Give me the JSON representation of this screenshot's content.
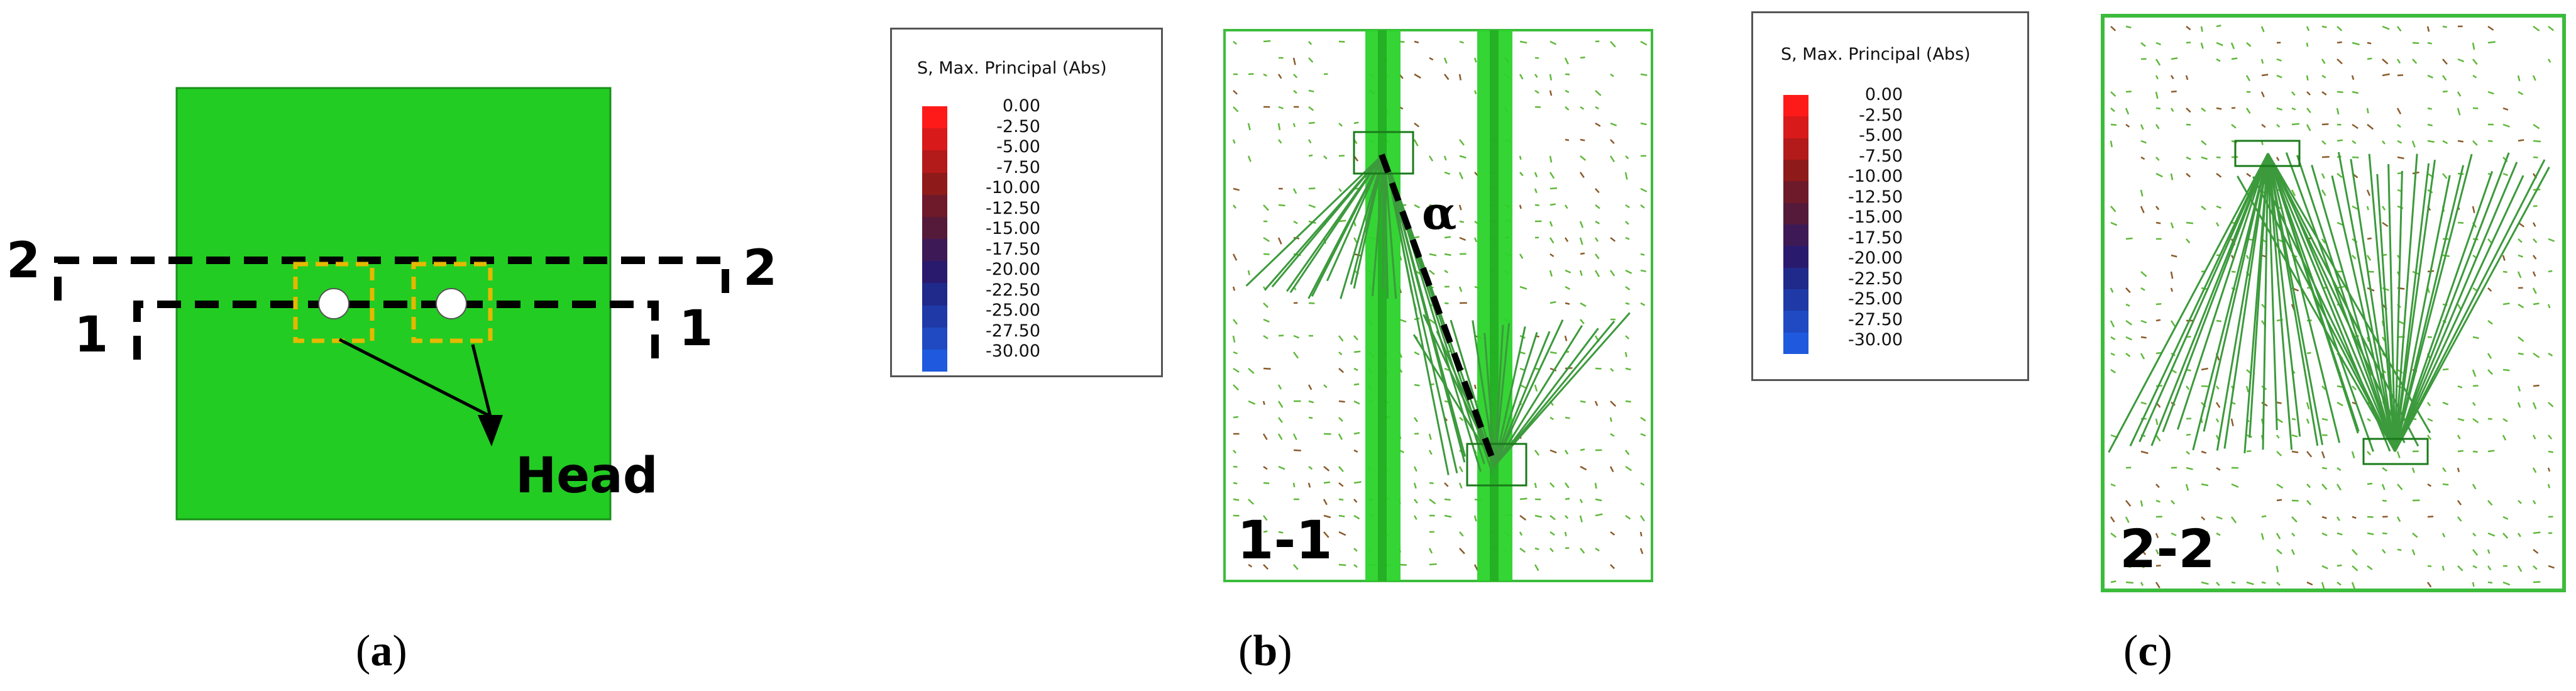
{
  "panels": {
    "a": {
      "caption": "a",
      "section_labels": {
        "two_left": "2",
        "two_right": "2",
        "one_left": "1",
        "one_right": "1"
      },
      "head_label": "Head",
      "colors": {
        "plate": "#22cc22",
        "dash": "#000000",
        "box": "#e6b800"
      }
    },
    "b": {
      "caption": "b",
      "legend_title": "S, Max. Principal (Abs)",
      "section_label": "1-1",
      "angle_label": "α"
    },
    "c": {
      "caption": "c",
      "legend_title": "S, Max. Principal (Abs)",
      "section_label": "2-2"
    }
  },
  "legend": {
    "values": [
      "0.00",
      "-2.50",
      "-5.00",
      "-7.50",
      "-10.00",
      "-12.50",
      "-15.00",
      "-17.50",
      "-20.00",
      "-22.50",
      "-25.00",
      "-27.50",
      "-30.00"
    ],
    "colors": [
      "#ff1a1a",
      "#d81a1a",
      "#b31a1a",
      "#8e1a1a",
      "#6e1a2a",
      "#551a3a",
      "#3d1a55",
      "#2a1a6e",
      "#1f2a8a",
      "#1f3aa6",
      "#1f4ac2",
      "#1f5ade",
      "#0a3aff"
    ]
  }
}
